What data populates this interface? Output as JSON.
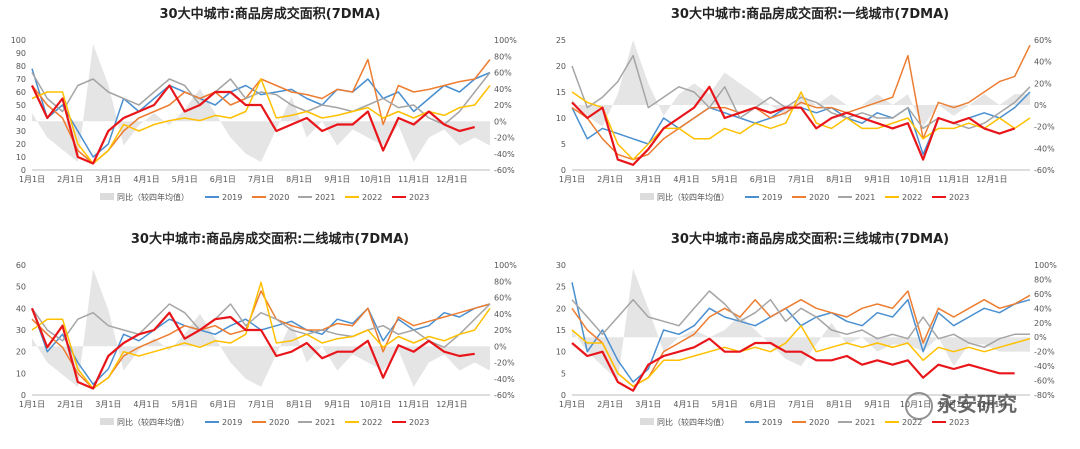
{
  "watermark": {
    "text": "永安研究",
    "icon": "wechat-icon"
  },
  "colors": {
    "yoy": "#dcdcdc",
    "2019": "#4a8fd0",
    "2020": "#ed7d31",
    "2021": "#a5a5a5",
    "2022": "#ffc000",
    "2023": "#e8161b"
  },
  "chart_data": [
    {
      "type": "line",
      "title": "30大中城市:商品房成交面积(7DMA)",
      "x_ticks": [
        "1月1日",
        "2月1日",
        "3月1日",
        "4月1日",
        "5月1日",
        "6月1日",
        "7月1日",
        "8月1日",
        "9月1日",
        "10月1日",
        "11月1日",
        "12月1日"
      ],
      "ylim": [
        0,
        100
      ],
      "y_ticks": [
        0,
        10,
        20,
        30,
        40,
        50,
        60,
        70,
        80,
        90,
        100
      ],
      "y2lim": [
        -60,
        100
      ],
      "y2_ticks": [
        "-60%",
        "-40%",
        "-20%",
        "0%",
        "20%",
        "40%",
        "60%",
        "80%",
        "100%"
      ],
      "legend": [
        "同比（较四年均值）",
        "2019",
        "2020",
        "2021",
        "2022",
        "2023"
      ],
      "series": [
        {
          "name": "同比（较四年均值）",
          "area": true,
          "values": [
            10,
            -20,
            -35,
            -50,
            95,
            45,
            -30,
            -5,
            10,
            -5,
            15,
            40,
            10,
            -20,
            -40,
            -50,
            -10,
            30,
            -20,
            0,
            -30,
            -10,
            -20,
            -30,
            -5,
            -50,
            -20,
            -10,
            -30,
            -20,
            -30
          ]
        },
        {
          "name": "2019",
          "values": [
            78,
            40,
            50,
            30,
            10,
            20,
            55,
            45,
            55,
            65,
            60,
            55,
            50,
            60,
            65,
            58,
            60,
            62,
            55,
            50,
            62,
            60,
            70,
            55,
            60,
            45,
            55,
            65,
            60,
            70,
            75
          ]
        },
        {
          "name": "2020",
          "values": [
            65,
            50,
            40,
            15,
            5,
            15,
            30,
            40,
            45,
            50,
            60,
            55,
            60,
            50,
            55,
            70,
            65,
            60,
            58,
            55,
            62,
            60,
            85,
            35,
            65,
            60,
            62,
            65,
            68,
            70,
            85
          ]
        },
        {
          "name": "2021",
          "values": [
            75,
            55,
            45,
            65,
            70,
            60,
            55,
            50,
            60,
            70,
            65,
            50,
            60,
            70,
            55,
            60,
            58,
            50,
            45,
            50,
            48,
            45,
            50,
            55,
            48,
            50,
            40,
            35,
            45,
            60,
            75
          ]
        },
        {
          "name": "2022",
          "values": [
            55,
            60,
            60,
            20,
            5,
            15,
            35,
            30,
            35,
            38,
            40,
            38,
            42,
            40,
            45,
            70,
            40,
            42,
            45,
            40,
            42,
            45,
            48,
            40,
            45,
            40,
            45,
            42,
            48,
            50,
            65
          ]
        },
        {
          "name": "2023",
          "values": [
            65,
            40,
            55,
            10,
            5,
            30,
            40,
            45,
            50,
            65,
            45,
            50,
            60,
            60,
            50,
            50,
            30,
            35,
            40,
            30,
            35,
            35,
            45,
            15,
            40,
            35,
            45,
            35,
            30,
            33,
            null
          ]
        }
      ]
    },
    {
      "type": "line",
      "title": "30大中城市:商品房成交面积:一线城市(7DMA)",
      "x_ticks": [
        "1月1日",
        "2月1日",
        "3月1日",
        "4月1日",
        "5月1日",
        "6月1日",
        "7月1日",
        "8月1日",
        "9月1日",
        "10月1日",
        "11月1日",
        "12月1日"
      ],
      "ylim": [
        0,
        25
      ],
      "y_ticks": [
        0,
        5,
        10,
        15,
        20,
        25
      ],
      "y2lim": [
        -60,
        60
      ],
      "y2_ticks": [
        "-60%",
        "-40%",
        "-20%",
        "0%",
        "20%",
        "40%",
        "60%"
      ],
      "legend": [
        "同比（较四年均值）",
        "2019",
        "2020",
        "2021",
        "2022",
        "2023"
      ],
      "series": [
        {
          "name": "同比（较四年均值）",
          "area": true,
          "values": [
            5,
            -10,
            -20,
            10,
            60,
            20,
            -10,
            10,
            20,
            10,
            30,
            20,
            10,
            0,
            -10,
            10,
            0,
            10,
            0,
            0,
            10,
            0,
            10,
            -20,
            0,
            -10,
            0,
            10,
            0,
            10,
            10
          ]
        },
        {
          "name": "2019",
          "values": [
            12,
            6,
            8,
            7,
            6,
            5,
            10,
            8,
            10,
            12,
            11,
            10,
            9,
            10,
            12,
            12,
            11,
            12,
            10,
            9,
            11,
            10,
            12,
            3,
            10,
            9,
            10,
            11,
            10,
            12,
            15
          ]
        },
        {
          "name": "2020",
          "values": [
            12,
            10,
            6,
            3,
            2,
            3,
            6,
            8,
            10,
            12,
            12,
            11,
            12,
            10,
            11,
            13,
            12,
            12,
            11,
            12,
            13,
            14,
            22,
            6,
            13,
            12,
            13,
            15,
            17,
            18,
            24
          ]
        },
        {
          "name": "2021",
          "values": [
            20,
            12,
            14,
            17,
            22,
            12,
            14,
            16,
            15,
            12,
            16,
            10,
            12,
            14,
            12,
            14,
            13,
            11,
            10,
            11,
            10,
            10,
            12,
            8,
            10,
            9,
            8,
            9,
            11,
            13,
            16
          ]
        },
        {
          "name": "2022",
          "values": [
            15,
            13,
            12,
            5,
            2,
            5,
            8,
            8,
            6,
            6,
            8,
            7,
            9,
            8,
            9,
            15,
            9,
            8,
            10,
            8,
            8,
            9,
            10,
            6,
            8,
            8,
            9,
            8,
            10,
            8,
            10
          ]
        },
        {
          "name": "2023",
          "values": [
            13,
            10,
            12,
            2,
            1,
            4,
            8,
            10,
            12,
            16,
            10,
            11,
            12,
            11,
            12,
            12,
            8,
            10,
            11,
            10,
            9,
            8,
            9,
            2,
            10,
            9,
            10,
            8,
            7,
            8,
            null
          ]
        }
      ]
    },
    {
      "type": "line",
      "title": "30大中城市:商品房成交面积:二线城市(7DMA)",
      "x_ticks": [
        "1月1日",
        "2月1日",
        "3月1日",
        "4月1日",
        "5月1日",
        "6月1日",
        "7月1日",
        "8月1日",
        "9月1日",
        "10月1日",
        "11月1日",
        "12月1日"
      ],
      "ylim": [
        0,
        60
      ],
      "y_ticks": [
        0,
        10,
        20,
        30,
        40,
        50,
        60
      ],
      "y2lim": [
        -60,
        100
      ],
      "y2_ticks": [
        "-60%",
        "-40%",
        "-20%",
        "0%",
        "20%",
        "40%",
        "60%",
        "80%",
        "100%"
      ],
      "legend": [
        "同比（较四年均值）",
        "2019",
        "2020",
        "2021",
        "2022",
        "2023"
      ],
      "series": [
        {
          "name": "同比（较四年均值）",
          "area": true,
          "values": [
            10,
            -20,
            -35,
            -50,
            95,
            45,
            -30,
            -5,
            10,
            -5,
            15,
            40,
            10,
            -20,
            -40,
            -50,
            -10,
            30,
            -20,
            0,
            -30,
            -10,
            -20,
            -30,
            -5,
            -50,
            -20,
            -10,
            -30,
            -20,
            -30
          ]
        },
        {
          "name": "2019",
          "values": [
            40,
            20,
            28,
            15,
            5,
            12,
            28,
            25,
            30,
            35,
            32,
            30,
            28,
            32,
            35,
            30,
            32,
            34,
            30,
            28,
            35,
            33,
            40,
            25,
            35,
            30,
            32,
            38,
            36,
            40,
            42
          ]
        },
        {
          "name": "2020",
          "values": [
            35,
            28,
            22,
            10,
            3,
            8,
            18,
            22,
            25,
            28,
            32,
            30,
            32,
            28,
            30,
            48,
            35,
            32,
            30,
            30,
            33,
            32,
            40,
            20,
            36,
            32,
            34,
            36,
            38,
            40,
            42
          ]
        },
        {
          "name": "2021",
          "values": [
            40,
            30,
            25,
            35,
            38,
            32,
            30,
            28,
            35,
            42,
            38,
            30,
            35,
            42,
            32,
            38,
            35,
            30,
            28,
            30,
            28,
            27,
            30,
            32,
            28,
            30,
            25,
            22,
            28,
            35,
            42
          ]
        },
        {
          "name": "2022",
          "values": [
            30,
            35,
            35,
            12,
            3,
            8,
            20,
            18,
            20,
            22,
            24,
            22,
            25,
            24,
            28,
            52,
            24,
            25,
            28,
            24,
            26,
            27,
            30,
            22,
            27,
            24,
            27,
            25,
            28,
            30,
            40
          ]
        },
        {
          "name": "2023",
          "values": [
            40,
            22,
            32,
            6,
            3,
            18,
            24,
            28,
            30,
            38,
            26,
            30,
            35,
            36,
            30,
            30,
            18,
            20,
            24,
            17,
            20,
            20,
            25,
            8,
            23,
            20,
            25,
            20,
            18,
            19,
            null
          ]
        }
      ]
    },
    {
      "type": "line",
      "title": "30大中城市:商品房成交面积:三线城市(7DMA)",
      "x_ticks": [
        "1月1日",
        "2月1日",
        "3月1日",
        "4月1日",
        "5月1日",
        "6月1日",
        "7月1日",
        "8月1日",
        "9月1日",
        "10月1日",
        "11月1日",
        "12月1日"
      ],
      "ylim": [
        0,
        30
      ],
      "y_ticks": [
        0,
        5,
        10,
        15,
        20,
        25,
        30
      ],
      "y2lim": [
        -80,
        100
      ],
      "y2_ticks": [
        "-80%",
        "-60%",
        "-40%",
        "-20%",
        "0%",
        "20%",
        "40%",
        "60%",
        "80%",
        "100%"
      ],
      "legend": [
        "同比（较四年均值）",
        "2019",
        "2020",
        "2021",
        "2022",
        "2023"
      ],
      "series": [
        {
          "name": "同比（较四年均值）",
          "area": true,
          "values": [
            10,
            -20,
            -40,
            -60,
            95,
            40,
            -20,
            0,
            10,
            0,
            10,
            30,
            10,
            -10,
            -30,
            -40,
            -10,
            20,
            -10,
            0,
            -20,
            -10,
            -10,
            -20,
            0,
            -40,
            -10,
            -10,
            -20,
            -20,
            -20
          ]
        },
        {
          "name": "2019",
          "values": [
            26,
            10,
            15,
            8,
            3,
            6,
            15,
            14,
            16,
            20,
            18,
            17,
            16,
            18,
            20,
            16,
            18,
            19,
            17,
            16,
            19,
            18,
            22,
            10,
            19,
            16,
            18,
            20,
            19,
            21,
            22
          ]
        },
        {
          "name": "2020",
          "values": [
            20,
            15,
            12,
            5,
            2,
            4,
            10,
            12,
            14,
            18,
            20,
            18,
            22,
            18,
            20,
            22,
            20,
            19,
            18,
            20,
            21,
            20,
            24,
            12,
            20,
            18,
            20,
            22,
            20,
            21,
            23
          ]
        },
        {
          "name": "2021",
          "values": [
            22,
            18,
            14,
            18,
            22,
            18,
            17,
            16,
            20,
            24,
            21,
            17,
            19,
            22,
            17,
            20,
            18,
            15,
            14,
            15,
            13,
            14,
            13,
            18,
            13,
            14,
            12,
            11,
            13,
            14,
            14
          ]
        },
        {
          "name": "2022",
          "values": [
            15,
            12,
            12,
            5,
            2,
            4,
            8,
            8,
            9,
            10,
            11,
            10,
            11,
            10,
            12,
            16,
            10,
            11,
            12,
            11,
            12,
            11,
            12,
            8,
            11,
            10,
            11,
            10,
            11,
            12,
            13
          ]
        },
        {
          "name": "2023",
          "values": [
            12,
            9,
            10,
            3,
            1,
            7,
            9,
            10,
            11,
            13,
            10,
            10,
            12,
            12,
            10,
            10,
            8,
            8,
            9,
            7,
            8,
            7,
            8,
            4,
            7,
            6,
            7,
            6,
            5,
            5,
            null
          ]
        }
      ]
    }
  ]
}
